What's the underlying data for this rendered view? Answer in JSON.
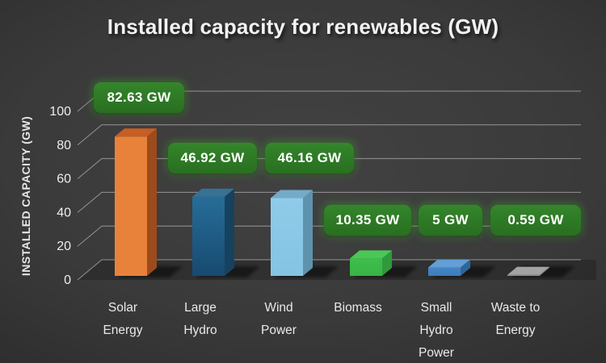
{
  "page": {
    "title": "Installed capacity for renewables (GW)"
  },
  "chart_data": {
    "type": "bar",
    "projection": "3d",
    "title": "Installed capacity for renewables (GW)",
    "xlabel": "",
    "ylabel": "INSTALLED CAPACITY (GW)",
    "categories": [
      "Solar Energy",
      "Large Hydro",
      "Wind Power",
      "Biomass",
      "Small Hydro Power",
      "Waste to Energy"
    ],
    "category_lines": [
      [
        "Solar",
        "Energy"
      ],
      [
        "Large",
        "Hydro"
      ],
      [
        "Wind",
        "Power"
      ],
      [
        "Biomass"
      ],
      [
        "Small",
        "Hydro",
        "Power"
      ],
      [
        "Waste to",
        "Energy"
      ]
    ],
    "values": [
      82.63,
      46.92,
      46.16,
      10.35,
      5,
      0.59
    ],
    "data_labels": [
      "82.63 GW",
      "46.92 GW",
      "46.16 GW",
      "10.35 GW",
      "5 GW",
      "0.59 GW"
    ],
    "unit": "GW",
    "yticks": [
      0,
      20,
      40,
      60,
      80,
      100
    ],
    "ylim": [
      0,
      100
    ],
    "grid": true,
    "legend": false,
    "colors": {
      "background_center": "#424242",
      "background_edge": "#222222",
      "gridline": "#ABABAB",
      "text": "#F0F0F0",
      "label_box_fill": "#2E7B26",
      "label_box_glow": "#3FA62E",
      "bars": [
        {
          "name": "Solar Energy",
          "front": "#E8823B",
          "front2": "#E8823B",
          "top": "#C75E22",
          "side": "#9C4B1B"
        },
        {
          "name": "Large Hydro",
          "front": "#276D98",
          "front2": "#174A70",
          "top": "#357293",
          "side": "#16425F"
        },
        {
          "name": "Wind Power",
          "front": "#8FCBE9",
          "front2": "#85C4E4",
          "top": "#73ABC8",
          "side": "#5E93AE"
        },
        {
          "name": "Biomass",
          "front": "#3EBE4B",
          "front2": "#38B445",
          "top": "#4AC757",
          "side": "#2E9A39"
        },
        {
          "name": "Small Hydro Power",
          "front": "#4586C5",
          "front2": "#3E7CBB",
          "top": "#639ED4",
          "side": "#30659A"
        },
        {
          "name": "Waste to Energy",
          "front": "#8F8F8F",
          "front2": "#8F8F8F",
          "top": "#A3A3A3",
          "side": "#6F6F6F"
        }
      ]
    }
  }
}
